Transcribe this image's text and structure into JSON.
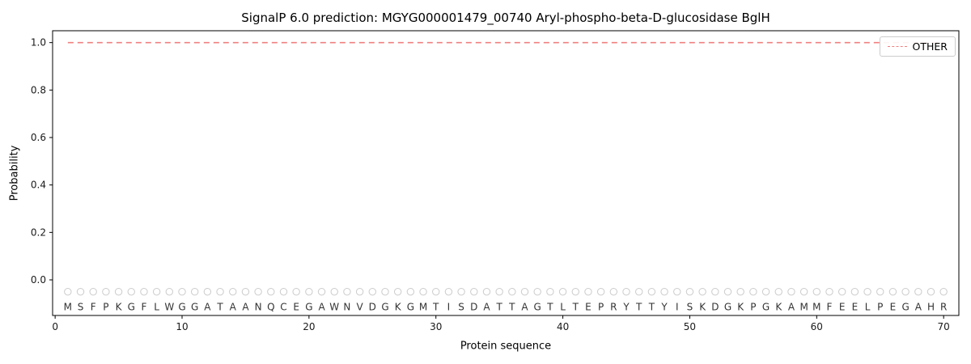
{
  "chart_data": {
    "type": "line",
    "title": "SignalP 6.0 prediction: MGYG000001479_00740 Aryl-phospho-beta-D-glucosidase BglH",
    "xlabel": "Protein sequence",
    "ylabel": "Probability",
    "xlim": [
      -0.2,
      71.2
    ],
    "ylim": [
      -0.15,
      1.05
    ],
    "xticks": [
      0,
      10,
      20,
      30,
      40,
      50,
      60,
      70
    ],
    "yticks": [
      0.0,
      0.2,
      0.4,
      0.6,
      0.8,
      1.0
    ],
    "grid": false,
    "legend": {
      "position": "upper right",
      "entries": [
        {
          "label": "OTHER",
          "color": "#f08080",
          "dash": true
        }
      ]
    },
    "sequence": [
      "M",
      "S",
      "F",
      "P",
      "K",
      "G",
      "F",
      "L",
      "W",
      "G",
      "G",
      "A",
      "T",
      "A",
      "A",
      "N",
      "Q",
      "C",
      "E",
      "G",
      "A",
      "W",
      "N",
      "V",
      "D",
      "G",
      "K",
      "G",
      "M",
      "T",
      "I",
      "S",
      "D",
      "A",
      "T",
      "T",
      "A",
      "G",
      "T",
      "L",
      "T",
      "E",
      "P",
      "R",
      "Y",
      "T",
      "T",
      "Y",
      "I",
      "S",
      "K",
      "D",
      "G",
      "K",
      "P",
      "G",
      "K",
      "A",
      "M",
      "M",
      "F",
      "E",
      "E",
      "L",
      "P",
      "E",
      "G",
      "A",
      "H",
      "R"
    ],
    "series": [
      {
        "name": "OTHER",
        "color": "#f08080",
        "style": "dashed",
        "x_start": 1,
        "values": [
          1.0,
          1.0,
          1.0,
          1.0,
          1.0,
          1.0,
          1.0,
          1.0,
          1.0,
          1.0,
          1.0,
          1.0,
          1.0,
          1.0,
          1.0,
          1.0,
          1.0,
          1.0,
          1.0,
          1.0,
          1.0,
          1.0,
          1.0,
          1.0,
          1.0,
          1.0,
          1.0,
          1.0,
          1.0,
          1.0,
          1.0,
          1.0,
          1.0,
          1.0,
          1.0,
          1.0,
          1.0,
          1.0,
          1.0,
          1.0,
          1.0,
          1.0,
          1.0,
          1.0,
          1.0,
          1.0,
          1.0,
          1.0,
          1.0,
          1.0,
          1.0,
          1.0,
          1.0,
          1.0,
          1.0,
          1.0,
          1.0,
          1.0,
          1.0,
          1.0,
          1.0,
          1.0,
          1.0,
          1.0,
          1.0,
          1.0,
          1.0,
          1.0,
          1.0,
          1.0
        ]
      }
    ],
    "marker_row": {
      "y": -0.05,
      "symbol": "circle",
      "color": "#cccccc"
    },
    "letter_row_y": -0.115
  }
}
